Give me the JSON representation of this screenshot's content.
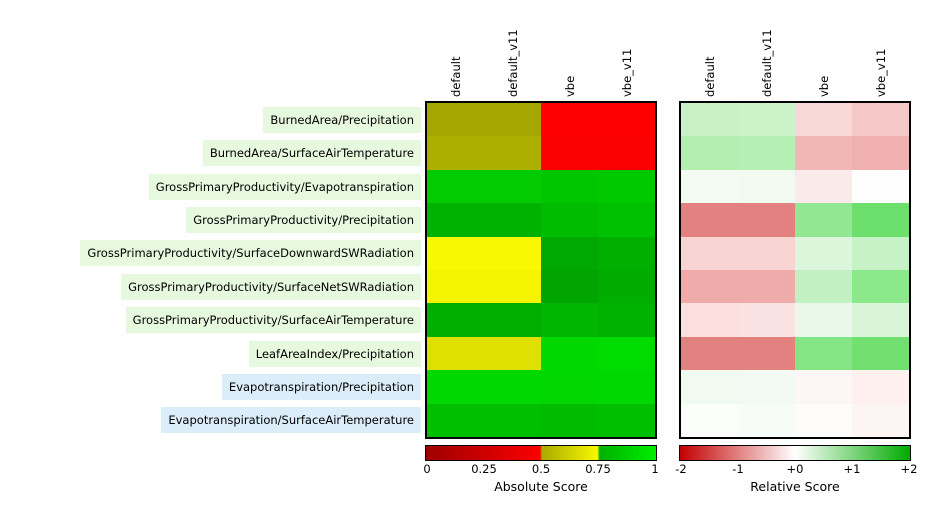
{
  "rows": [
    {
      "label": "BurnedArea/Precipitation",
      "highlight": "#e6f8de"
    },
    {
      "label": "BurnedArea/SurfaceAirTemperature",
      "highlight": "#e6f8de"
    },
    {
      "label": "GrossPrimaryProductivity/Evapotranspiration",
      "highlight": "#e6f8de"
    },
    {
      "label": "GrossPrimaryProductivity/Precipitation",
      "highlight": "#e6f8de"
    },
    {
      "label": "GrossPrimaryProductivity/SurfaceDownwardSWRadiation",
      "highlight": "#e6f8de"
    },
    {
      "label": "GrossPrimaryProductivity/SurfaceNetSWRadiation",
      "highlight": "#e6f8de"
    },
    {
      "label": "GrossPrimaryProductivity/SurfaceAirTemperature",
      "highlight": "#e6f8de"
    },
    {
      "label": "LeafAreaIndex/Precipitation",
      "highlight": "#e6f8de"
    },
    {
      "label": "Evapotranspiration/Precipitation",
      "highlight": "#dbedf8"
    },
    {
      "label": "Evapotranspiration/SurfaceAirTemperature",
      "highlight": "#dbedf8"
    }
  ],
  "chart_data": [
    {
      "type": "heatmap",
      "title": "Absolute Score",
      "x_labels": [
        "default",
        "default_v11",
        "vbe",
        "vbe_v11"
      ],
      "y_labels": [
        "BurnedArea/Precipitation",
        "BurnedArea/SurfaceAirTemperature",
        "GrossPrimaryProductivity/Evapotranspiration",
        "GrossPrimaryProductivity/Precipitation",
        "GrossPrimaryProductivity/SurfaceDownwardSWRadiation",
        "GrossPrimaryProductivity/SurfaceNetSWRadiation",
        "GrossPrimaryProductivity/SurfaceAirTemperature",
        "LeafAreaIndex/Precipitation",
        "Evapotranspiration/Precipitation",
        "Evapotranspiration/SurfaceAirTemperature"
      ],
      "value_range": [
        0,
        1
      ],
      "colorbar_ticks": [
        "0",
        "0.25",
        "0.5",
        "0.75",
        "1"
      ],
      "colorbar_stops": [
        [
          "#9e0000",
          "0%"
        ],
        [
          "#fb0000",
          "49.5%"
        ],
        [
          "#a9ab00",
          "50.5%"
        ],
        [
          "#f8f800",
          "74.5%"
        ],
        [
          "#00b100",
          "75.5%"
        ],
        [
          "#00ee00",
          "100%"
        ]
      ],
      "values_estimated": [
        [
          0.52,
          0.52,
          0.43,
          0.43
        ],
        [
          0.53,
          0.53,
          0.42,
          0.42
        ],
        [
          0.9,
          0.9,
          0.88,
          0.89
        ],
        [
          0.8,
          0.8,
          0.84,
          0.86
        ],
        [
          0.74,
          0.74,
          0.76,
          0.78
        ],
        [
          0.73,
          0.73,
          0.75,
          0.77
        ],
        [
          0.78,
          0.78,
          0.81,
          0.8
        ],
        [
          0.68,
          0.68,
          0.94,
          0.95
        ],
        [
          0.95,
          0.95,
          0.94,
          0.95
        ],
        [
          0.84,
          0.84,
          0.83,
          0.84
        ]
      ],
      "cell_colors": [
        [
          "#a5a700",
          "#a5a700",
          "#fd0000",
          "#fd0000"
        ],
        [
          "#acae00",
          "#acae00",
          "#fb0000",
          "#fb0000"
        ],
        [
          "#03cb03",
          "#03cb03",
          "#00c600",
          "#00c900"
        ],
        [
          "#00b200",
          "#00b200",
          "#00bc00",
          "#00c100"
        ],
        [
          "#f8f800",
          "#f8f800",
          "#00a900",
          "#00ae00"
        ],
        [
          "#f4f400",
          "#f4f400",
          "#00a400",
          "#00ac00"
        ],
        [
          "#00ae00",
          "#00ae00",
          "#00b600",
          "#00b200"
        ],
        [
          "#e0e000",
          "#e0e000",
          "#00d900",
          "#00dc00"
        ],
        [
          "#00d900",
          "#00d900",
          "#00d600",
          "#00d900"
        ],
        [
          "#00be00",
          "#00be00",
          "#00bb00",
          "#00be00"
        ]
      ]
    },
    {
      "type": "heatmap",
      "title": "Relative Score",
      "x_labels": [
        "default",
        "default_v11",
        "vbe",
        "vbe_v11"
      ],
      "y_labels": [
        "BurnedArea/Precipitation",
        "BurnedArea/SurfaceAirTemperature",
        "GrossPrimaryProductivity/Evapotranspiration",
        "GrossPrimaryProductivity/Precipitation",
        "GrossPrimaryProductivity/SurfaceDownwardSWRadiation",
        "GrossPrimaryProductivity/SurfaceNetSWRadiation",
        "GrossPrimaryProductivity/SurfaceAirTemperature",
        "LeafAreaIndex/Precipitation",
        "Evapotranspiration/Precipitation",
        "Evapotranspiration/SurfaceAirTemperature"
      ],
      "value_range": [
        -2,
        2
      ],
      "colorbar_ticks": [
        "-2",
        "-1",
        "+0",
        "+1",
        "+2"
      ],
      "colorbar_stops": [
        [
          "#c30000",
          "0%"
        ],
        [
          "#ffffff",
          "50%"
        ],
        [
          "#00ab00",
          "100%"
        ]
      ],
      "values_estimated": [
        [
          0.45,
          0.45,
          -0.35,
          -0.45
        ],
        [
          0.65,
          0.65,
          -0.6,
          -0.65
        ],
        [
          0.1,
          0.1,
          -0.15,
          0.0
        ],
        [
          -1.1,
          -1.1,
          0.95,
          1.3
        ],
        [
          -0.4,
          -0.4,
          0.3,
          0.5
        ],
        [
          -0.7,
          -0.7,
          0.55,
          1.05
        ],
        [
          -0.25,
          -0.25,
          0.2,
          0.35
        ],
        [
          -1.1,
          -1.1,
          1.15,
          1.25
        ],
        [
          0.1,
          0.1,
          -0.05,
          -0.1
        ],
        [
          0.05,
          0.05,
          -0.02,
          -0.08
        ]
      ],
      "cell_colors": [
        [
          "#c9f1c7",
          "#ccf2ca",
          "#f8d7d6",
          "#f5c9c8"
        ],
        [
          "#b3eeb1",
          "#b6efb4",
          "#f2b6b5",
          "#f0b0af"
        ],
        [
          "#f4fbf2",
          "#f2faf0",
          "#faeae9",
          "#fefefe"
        ],
        [
          "#e38181",
          "#e38181",
          "#92e892",
          "#6ddf6d"
        ],
        [
          "#f7d3d2",
          "#f7d3d2",
          "#dcf6dc",
          "#c7f1c7"
        ],
        [
          "#efabaa",
          "#efabaa",
          "#c2f0c2",
          "#8be88b"
        ],
        [
          "#fbdfdf",
          "#fbe2e2",
          "#e9f8e9",
          "#d8f5d8"
        ],
        [
          "#e38080",
          "#e38080",
          "#84e584",
          "#71e071"
        ],
        [
          "#f1faf1",
          "#f3faf3",
          "#fdf6f6",
          "#fdf0ef"
        ],
        [
          "#fafdfa",
          "#f8fcf8",
          "#fefbfb",
          "#fdf4f4"
        ]
      ]
    }
  ]
}
